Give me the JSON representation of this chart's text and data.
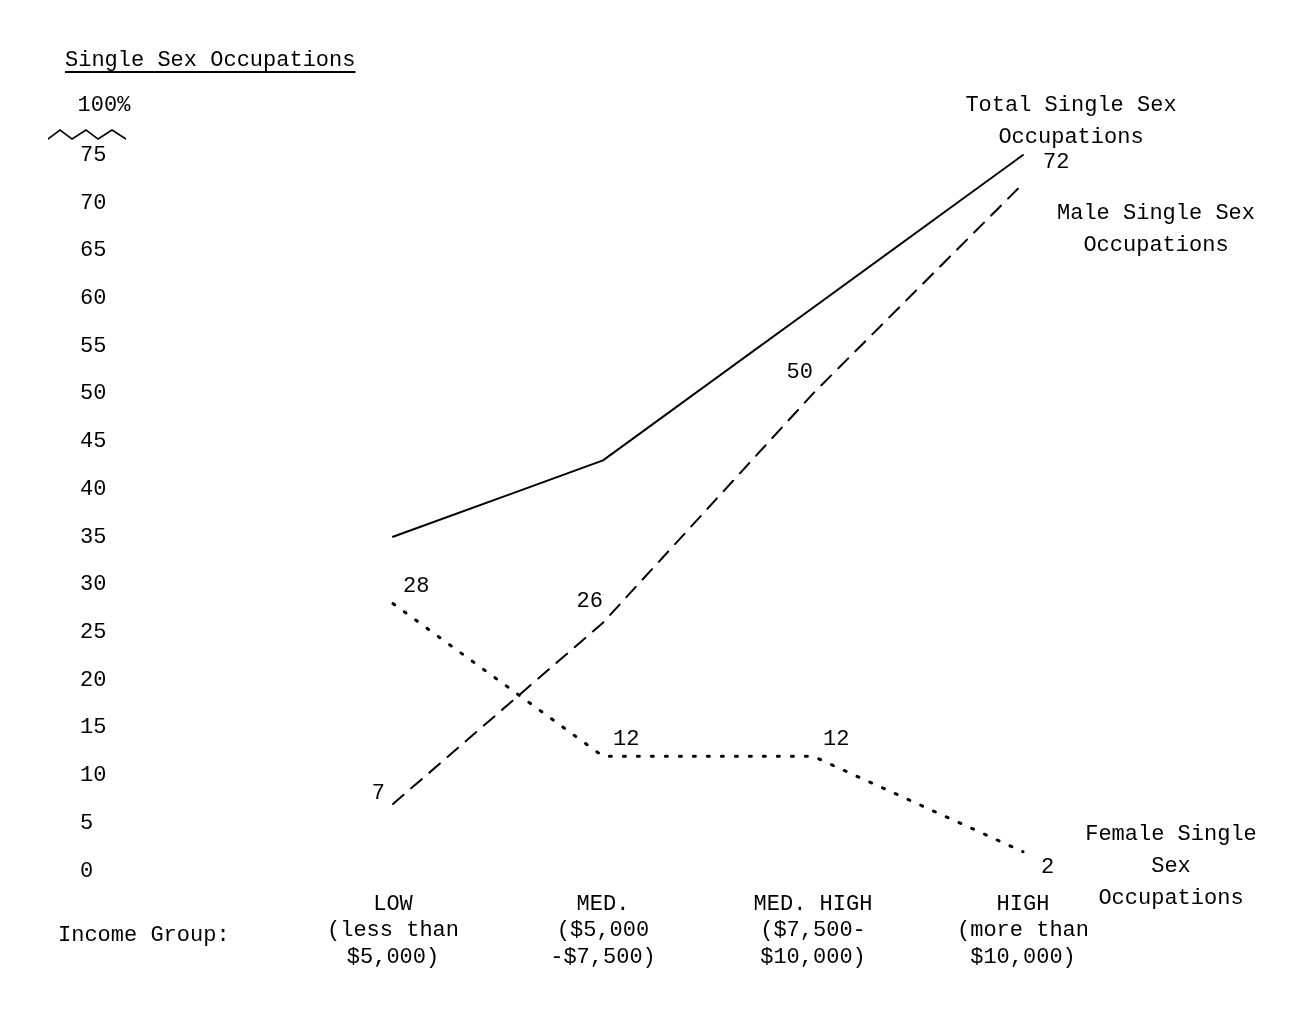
{
  "chart_data": {
    "type": "line",
    "ylabel": "Single Sex Occupations",
    "xlabel": "Income Group:",
    "categories": [
      "LOW\n(less than\n$5,000)",
      "MED.\n($5,000\n-$7,500)",
      "MED. HIGH\n($7,500-\n$10,000)",
      "HIGH\n(more than\n$10,000)"
    ],
    "series": [
      {
        "name": "Total Single Sex\nOccupations",
        "color": "#000000",
        "line_style": "solid",
        "values": [
          35,
          43,
          59,
          75
        ]
      },
      {
        "name": "Male Single Sex\nOccupations",
        "color": "#000000",
        "line_style": "dashed",
        "values": [
          7,
          26,
          50,
          72
        ],
        "value_labels": [
          "7",
          "26",
          "50",
          "72"
        ]
      },
      {
        "name": "Female Single\nSex\nOccupations",
        "color": "#000000",
        "line_style": "dotted",
        "values": [
          28,
          12,
          12,
          2
        ],
        "value_labels": [
          "28",
          "12",
          "12",
          "2"
        ]
      }
    ],
    "ylim": [
      0,
      75
    ],
    "yticks": [
      0,
      5,
      10,
      15,
      20,
      25,
      30,
      35,
      40,
      45,
      50,
      55,
      60,
      65,
      70,
      75
    ],
    "annotations": [
      "100%"
    ],
    "grid": false,
    "legend": false,
    "marker": "none"
  }
}
